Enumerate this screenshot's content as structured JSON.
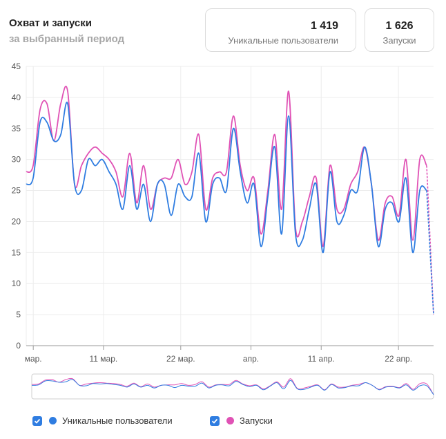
{
  "header": {
    "title": "Охват и запуски",
    "subtitle": "за выбранный период"
  },
  "summary": {
    "users": {
      "value": "1 419",
      "label": "Уникальные пользователи"
    },
    "launches": {
      "value": "1 626",
      "label": "Запуски"
    }
  },
  "legend": [
    {
      "label": "Уникальные пользователи",
      "color": "#2f7de1",
      "checked": true
    },
    {
      "label": "Запуски",
      "color": "#e052b5",
      "checked": true
    }
  ],
  "chart_data": {
    "type": "line",
    "ylim": [
      0,
      45
    ],
    "yticks": [
      "0",
      "5",
      "10",
      "15",
      "20",
      "25",
      "30",
      "35",
      "40",
      "45"
    ],
    "xticks": [
      {
        "label": "мар.",
        "day": 1
      },
      {
        "label": "11 мар.",
        "day": 11
      },
      {
        "label": "22 мар.",
        "day": 22
      },
      {
        "label": "апр.",
        "day": 32
      },
      {
        "label": "11 апр.",
        "day": 42
      },
      {
        "label": "22 апр.",
        "day": 53
      }
    ],
    "x_start_day": 0,
    "x_end_day": 58,
    "series": [
      {
        "name": "Уникальные пользователи",
        "color": "#2f7de1",
        "values": [
          26,
          27,
          36,
          36,
          33,
          34,
          39,
          26,
          25,
          30,
          29,
          30,
          28,
          26,
          22,
          29,
          22,
          26,
          20,
          26,
          26,
          21,
          26,
          24,
          24,
          31,
          20,
          26,
          27,
          25,
          35,
          28,
          23,
          26,
          16,
          24,
          32,
          18,
          37,
          18,
          17,
          22,
          26,
          15,
          28,
          20,
          21,
          25,
          25,
          32,
          26,
          16,
          22,
          23,
          20,
          27,
          15,
          25,
          25,
          5
        ]
      },
      {
        "name": "Запуски",
        "color": "#e052b5",
        "values": [
          28,
          29,
          38,
          39,
          33,
          39,
          41,
          26,
          29,
          31,
          32,
          31,
          30,
          28,
          24,
          31,
          23,
          29,
          22,
          26,
          27,
          27,
          30,
          26,
          28,
          34,
          22,
          27,
          28,
          28,
          37,
          29,
          25,
          27,
          18,
          25,
          34,
          22,
          41,
          19,
          20,
          24,
          27,
          16,
          29,
          22,
          22,
          26,
          28,
          32,
          26,
          17,
          23,
          24,
          21,
          30,
          17,
          30,
          29,
          5
        ]
      }
    ]
  }
}
